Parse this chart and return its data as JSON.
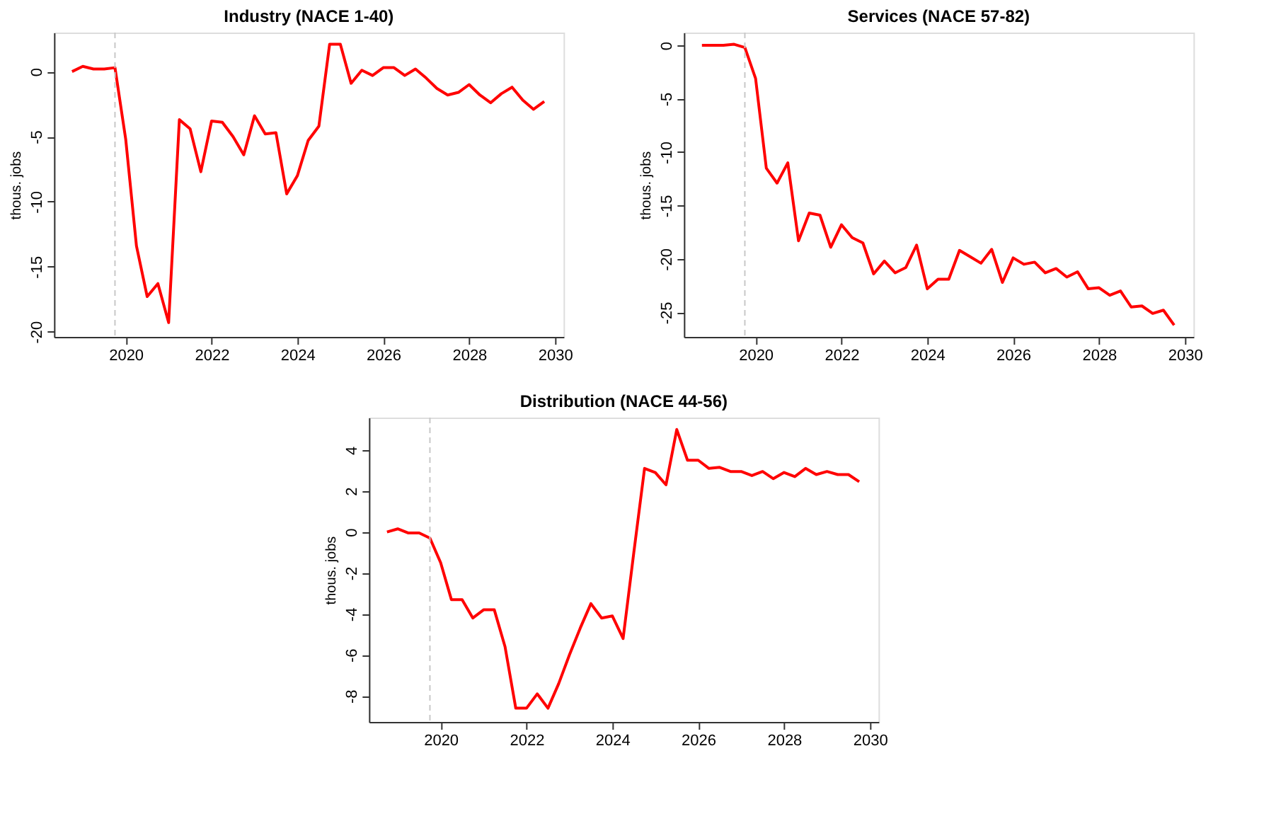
{
  "chart_data": [
    {
      "type": "line",
      "title": "Industry (NACE 1-40)",
      "ylabel": "thous. jobs",
      "x": [
        2018.75,
        2019,
        2019.25,
        2019.5,
        2019.75,
        2020,
        2020.25,
        2020.5,
        2020.75,
        2021,
        2021.25,
        2021.5,
        2021.75,
        2022,
        2022.25,
        2022.5,
        2022.75,
        2023,
        2023.25,
        2023.5,
        2023.75,
        2024,
        2024.25,
        2024.5,
        2024.75,
        2025,
        2025.25,
        2025.5,
        2025.75,
        2026,
        2026.25,
        2026.5,
        2026.75,
        2027,
        2027.25,
        2027.5,
        2027.75,
        2028,
        2028.25,
        2028.5,
        2028.75,
        2029,
        2029.25,
        2029.5,
        2029.75
      ],
      "series": [
        {
          "color": "#ff0000",
          "values": [
            0,
            0.4,
            0.2,
            0.2,
            0.3,
            -5.2,
            -13.4,
            -17.3,
            -16.3,
            -19.3,
            -3.7,
            -4.4,
            -7.7,
            -3.8,
            -3.9,
            -5.0,
            -6.4,
            -3.4,
            -4.8,
            -4.7,
            -9.4,
            -8.0,
            -5.3,
            -4.2,
            2.1,
            2.1,
            -0.9,
            0.1,
            -0.3,
            0.3,
            0.3,
            -0.3,
            0.2,
            -0.5,
            -1.3,
            -1.8,
            -1.6,
            -1.0,
            -1.8,
            -2.4,
            -1.7,
            -1.2,
            -2.2,
            -2.9,
            -2.3
          ]
        }
      ],
      "xlim": [
        2018.33,
        2030.2
      ],
      "xticks": [
        2020,
        2022,
        2024,
        2026,
        2028,
        2030
      ],
      "ylim": [
        -20.4,
        3
      ],
      "yticks": [
        -20,
        -15,
        -10,
        -5,
        0
      ],
      "ref_lines": [
        {
          "axis": "x",
          "value": 2019.75,
          "color": "#c8c8c8",
          "line_style": "dashed"
        }
      ]
    },
    {
      "type": "line",
      "title": "Services (NACE 57-82)",
      "ylabel": "thous. jobs",
      "x": [
        2018.75,
        2019,
        2019.25,
        2019.5,
        2019.75,
        2020,
        2020.25,
        2020.5,
        2020.75,
        2021,
        2021.25,
        2021.5,
        2021.75,
        2022,
        2022.25,
        2022.5,
        2022.75,
        2023,
        2023.25,
        2023.5,
        2023.75,
        2024,
        2024.25,
        2024.5,
        2024.75,
        2025,
        2025.25,
        2025.5,
        2025.75,
        2026,
        2026.25,
        2026.5,
        2026.75,
        2027,
        2027.25,
        2027.5,
        2027.75,
        2028,
        2028.25,
        2028.5,
        2028.75,
        2029,
        2029.25,
        2029.5,
        2029.75
      ],
      "series": [
        {
          "color": "#ff0000",
          "values": [
            0,
            0,
            0,
            0.1,
            -0.2,
            -3.1,
            -11.5,
            -12.9,
            -11.0,
            -18.3,
            -15.7,
            -15.9,
            -18.9,
            -16.8,
            -18.0,
            -18.5,
            -21.4,
            -20.2,
            -21.3,
            -20.8,
            -18.7,
            -22.8,
            -21.9,
            -21.9,
            -19.2,
            -19.8,
            -20.4,
            -19.1,
            -22.2,
            -19.9,
            -20.5,
            -20.3,
            -21.3,
            -20.9,
            -21.7,
            -21.2,
            -22.8,
            -22.7,
            -23.4,
            -23.0,
            -24.5,
            -24.4,
            -25.1,
            -24.8,
            -26.2
          ]
        }
      ],
      "xlim": [
        2018.33,
        2030.2
      ],
      "xticks": [
        2020,
        2022,
        2024,
        2026,
        2028,
        2030
      ],
      "ylim": [
        -27.3,
        1.2
      ],
      "yticks": [
        -25,
        -20,
        -15,
        -10,
        -5,
        0
      ],
      "ref_lines": [
        {
          "axis": "x",
          "value": 2019.75,
          "color": "#c8c8c8",
          "line_style": "dashed"
        }
      ]
    },
    {
      "type": "line",
      "title": "Distribution (NACE 44-56)",
      "ylabel": "thous. jobs",
      "x": [
        2018.75,
        2019,
        2019.25,
        2019.5,
        2019.75,
        2020,
        2020.25,
        2020.5,
        2020.75,
        2021,
        2021.25,
        2021.5,
        2021.75,
        2022,
        2022.25,
        2022.5,
        2022.75,
        2023,
        2023.25,
        2023.5,
        2023.75,
        2024,
        2024.25,
        2024.5,
        2024.75,
        2025,
        2025.25,
        2025.5,
        2025.75,
        2026,
        2026.25,
        2026.5,
        2026.75,
        2027,
        2027.25,
        2027.5,
        2027.75,
        2028,
        2028.25,
        2028.5,
        2028.75,
        2029,
        2029.25,
        2029.5,
        2029.75
      ],
      "series": [
        {
          "color": "#ff0000",
          "values": [
            0,
            0.15,
            -0.05,
            -0.05,
            -0.3,
            -1.5,
            -3.3,
            -3.3,
            -4.2,
            -3.8,
            -3.8,
            -5.6,
            -8.6,
            -8.6,
            -7.9,
            -8.6,
            -7.4,
            -6.0,
            -4.7,
            -3.5,
            -4.2,
            -4.1,
            -5.2,
            -1.0,
            3.1,
            2.9,
            2.3,
            5.0,
            3.5,
            3.5,
            3.1,
            3.15,
            2.95,
            2.95,
            2.75,
            2.95,
            2.6,
            2.9,
            2.7,
            3.1,
            2.8,
            2.95,
            2.8,
            2.8,
            2.45
          ]
        }
      ],
      "xlim": [
        2018.33,
        2030.2
      ],
      "xticks": [
        2020,
        2022,
        2024,
        2026,
        2028,
        2030
      ],
      "ylim": [
        -9.27,
        5.58
      ],
      "yticks": [
        -8,
        -6,
        -4,
        -2,
        0,
        2,
        4
      ],
      "ref_lines": [
        {
          "axis": "x",
          "value": 2019.75,
          "color": "#c8c8c8",
          "line_style": "dashed"
        }
      ]
    }
  ]
}
